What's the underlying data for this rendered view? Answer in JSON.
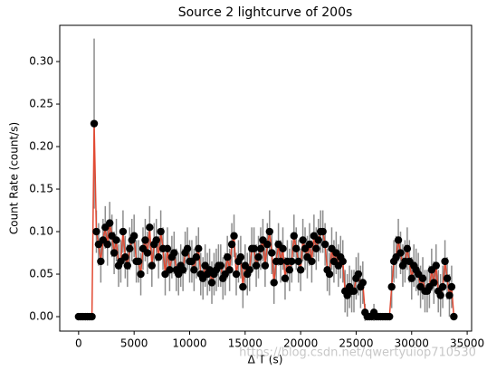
{
  "chart_data": {
    "type": "errorbar",
    "title": "Source 2 lightcurve of 200s",
    "xlabel": "Δ T (s)",
    "ylabel": "Count Rate (count/s)",
    "watermark": "https://blog.csdn.net/qwertyuiop710530",
    "xlim": [
      -1700,
      35400
    ],
    "ylim": [
      -0.017,
      0.3426
    ],
    "xticks": [
      0,
      5000,
      10000,
      15000,
      20000,
      25000,
      30000,
      35000
    ],
    "yticks": [
      {
        "value": 0,
        "label": "0.00"
      },
      {
        "value": 0.05,
        "label": "0.05"
      },
      {
        "value": 0.1,
        "label": "0.10"
      },
      {
        "value": 0.15,
        "label": "0.15"
      },
      {
        "value": 0.2,
        "label": "0.20"
      },
      {
        "value": 0.25,
        "label": "0.25"
      },
      {
        "value": 0.3,
        "label": "0.30"
      }
    ],
    "x": [
      0,
      200,
      400,
      600,
      800,
      1000,
      1200,
      1400,
      1600,
      1800,
      2000,
      2200,
      2400,
      2600,
      2800,
      3000,
      3200,
      3400,
      3600,
      3800,
      4000,
      4200,
      4400,
      4600,
      4800,
      5000,
      5200,
      5400,
      5600,
      5800,
      6000,
      6200,
      6400,
      6600,
      6800,
      7000,
      7200,
      7400,
      7600,
      7800,
      8000,
      8200,
      8400,
      8600,
      8800,
      9000,
      9200,
      9400,
      9600,
      9800,
      10000,
      10200,
      10400,
      10600,
      10800,
      11000,
      11200,
      11400,
      11600,
      11800,
      12000,
      12200,
      12400,
      12600,
      12800,
      13000,
      13200,
      13400,
      13600,
      13800,
      14000,
      14200,
      14400,
      14600,
      14800,
      15000,
      15200,
      15400,
      15600,
      15800,
      16000,
      16200,
      16400,
      16600,
      16800,
      17000,
      17200,
      17400,
      17600,
      17800,
      18000,
      18200,
      18400,
      18600,
      18800,
      19000,
      19200,
      19400,
      19600,
      19800,
      20000,
      20200,
      20400,
      20600,
      20800,
      21000,
      21200,
      21400,
      21600,
      21800,
      22000,
      22200,
      22400,
      22600,
      22800,
      23000,
      23200,
      23400,
      23600,
      23800,
      24000,
      24200,
      24400,
      24600,
      24800,
      25000,
      25200,
      25400,
      25600,
      25800,
      26000,
      26200,
      26400,
      26600,
      26800,
      27000,
      27200,
      27400,
      27600,
      27800,
      28000,
      28200,
      28400,
      28600,
      28800,
      29000,
      29200,
      29400,
      29600,
      29800,
      30000,
      30200,
      30400,
      30600,
      30800,
      31000,
      31200,
      31400,
      31600,
      31800,
      32000,
      32200,
      32400,
      32600,
      32800,
      33000,
      33200,
      33400,
      33600,
      33800
    ],
    "series": [
      {
        "line_color": "#e24a33",
        "marker_color": "#000000",
        "error_color": "#8c8c8c",
        "values": [
          0,
          0,
          0,
          0,
          0,
          0,
          0,
          0.227,
          0.1,
          0.085,
          0.065,
          0.09,
          0.105,
          0.085,
          0.11,
          0.095,
          0.075,
          0.09,
          0.06,
          0.065,
          0.1,
          0.07,
          0.06,
          0.08,
          0.09,
          0.095,
          0.065,
          0.065,
          0.05,
          0.08,
          0.09,
          0.075,
          0.105,
          0.06,
          0.085,
          0.09,
          0.07,
          0.1,
          0.08,
          0.05,
          0.08,
          0.055,
          0.07,
          0.075,
          0.055,
          0.05,
          0.06,
          0.055,
          0.075,
          0.08,
          0.065,
          0.065,
          0.055,
          0.07,
          0.08,
          0.05,
          0.045,
          0.06,
          0.05,
          0.055,
          0.04,
          0.05,
          0.055,
          0.06,
          0.06,
          0.045,
          0.05,
          0.07,
          0.055,
          0.085,
          0.095,
          0.05,
          0.065,
          0.07,
          0.035,
          0.06,
          0.05,
          0.055,
          0.08,
          0.08,
          0.06,
          0.07,
          0.08,
          0.09,
          0.06,
          0.085,
          0.1,
          0.075,
          0.04,
          0.065,
          0.085,
          0.065,
          0.08,
          0.045,
          0.065,
          0.055,
          0.065,
          0.095,
          0.08,
          0.065,
          0.055,
          0.09,
          0.08,
          0.07,
          0.085,
          0.065,
          0.095,
          0.08,
          0.09,
          0.1,
          0.1,
          0.085,
          0.055,
          0.05,
          0.08,
          0.065,
          0.075,
          0.06,
          0.07,
          0.065,
          0.03,
          0.025,
          0.035,
          0.03,
          0.03,
          0.045,
          0.05,
          0.035,
          0.04,
          0.005,
          0,
          0,
          0,
          0.005,
          0,
          0,
          0,
          0,
          0,
          0,
          0,
          0.035,
          0.065,
          0.07,
          0.09,
          0.075,
          0.06,
          0.065,
          0.08,
          0.065,
          0.045,
          0.06,
          0.055,
          0.05,
          0.035,
          0.045,
          0.03,
          0.03,
          0.035,
          0.055,
          0.04,
          0.06,
          0.03,
          0.025,
          0.035,
          0.065,
          0.045,
          0.025,
          0.035,
          0
        ],
        "errors": [
          0,
          0,
          0,
          0,
          0,
          0,
          0,
          0.1,
          0.025,
          0.025,
          0.025,
          0.025,
          0.025,
          0.025,
          0.025,
          0.025,
          0.025,
          0.025,
          0.025,
          0.025,
          0.025,
          0.025,
          0.025,
          0.025,
          0.025,
          0.025,
          0.025,
          0.025,
          0.025,
          0.025,
          0.025,
          0.025,
          0.025,
          0.025,
          0.025,
          0.025,
          0.025,
          0.025,
          0.025,
          0.025,
          0.025,
          0.025,
          0.025,
          0.025,
          0.025,
          0.025,
          0.025,
          0.025,
          0.025,
          0.025,
          0.025,
          0.025,
          0.025,
          0.025,
          0.025,
          0.025,
          0.025,
          0.025,
          0.025,
          0.025,
          0.025,
          0.025,
          0.025,
          0.025,
          0.025,
          0.025,
          0.025,
          0.025,
          0.025,
          0.025,
          0.025,
          0.025,
          0.025,
          0.025,
          0.025,
          0.025,
          0.025,
          0.025,
          0.025,
          0.025,
          0.025,
          0.025,
          0.025,
          0.025,
          0.025,
          0.025,
          0.025,
          0.025,
          0.025,
          0.025,
          0.025,
          0.025,
          0.025,
          0.025,
          0.025,
          0.025,
          0.025,
          0.025,
          0.025,
          0.025,
          0.025,
          0.025,
          0.025,
          0.025,
          0.025,
          0.025,
          0.025,
          0.025,
          0.025,
          0.025,
          0.025,
          0.025,
          0.025,
          0.025,
          0.025,
          0.025,
          0.025,
          0.025,
          0.025,
          0.025,
          0.025,
          0.025,
          0.025,
          0.025,
          0.025,
          0.025,
          0.025,
          0.025,
          0.025,
          0.01,
          0,
          0,
          0,
          0.01,
          0,
          0,
          0,
          0,
          0,
          0,
          0,
          0.025,
          0.025,
          0.025,
          0.025,
          0.025,
          0.025,
          0.025,
          0.025,
          0.025,
          0.025,
          0.025,
          0.025,
          0.025,
          0.025,
          0.025,
          0.025,
          0.025,
          0.025,
          0.025,
          0.025,
          0.025,
          0.025,
          0.025,
          0.025,
          0.025,
          0.025,
          0.025,
          0.025,
          0
        ]
      }
    ]
  }
}
